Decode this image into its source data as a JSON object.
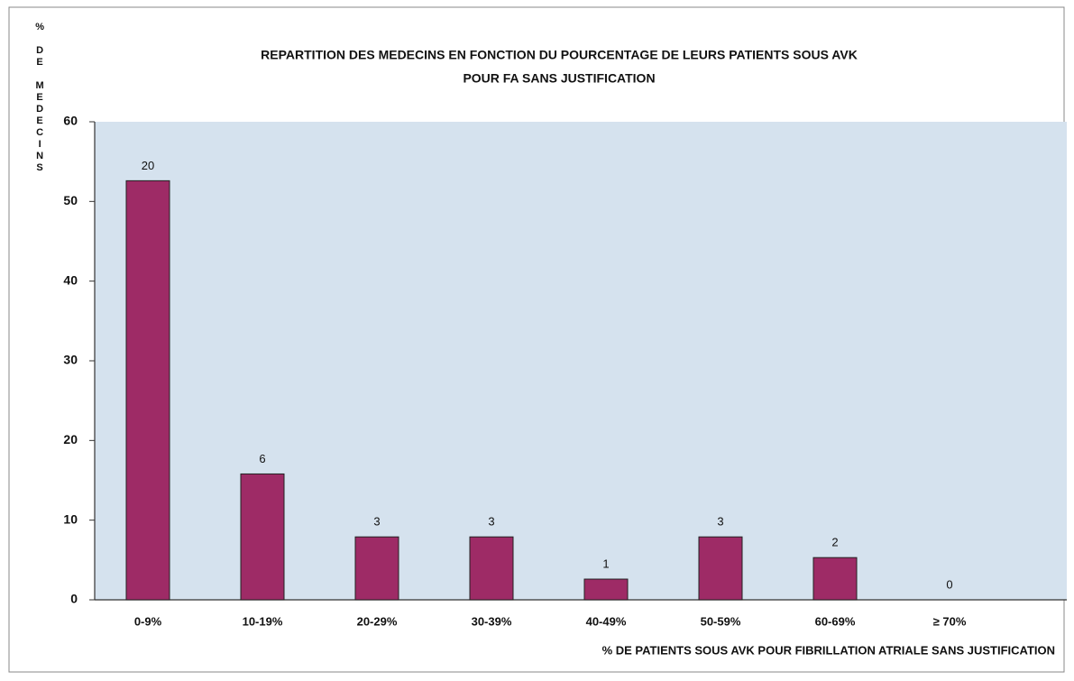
{
  "chart_data": {
    "type": "bar",
    "title": [
      "REPARTITION DES MEDECINS EN FONCTION DU POURCENTAGE DE LEURS PATIENTS SOUS AVK",
      "POUR FA SANS JUSTIFICATION"
    ],
    "y_label": "% DE MEDECINS",
    "x_label": "% DE PATIENTS SOUS AVK POUR FIBRILLATION ATRIALE SANS JUSTIFICATION",
    "categories": [
      "0-9%",
      "10-19%",
      "20-29%",
      "30-39%",
      "40-49%",
      "50-59%",
      "60-69%",
      "≥ 70%"
    ],
    "values": [
      52.6,
      15.8,
      7.9,
      7.9,
      2.6,
      7.9,
      5.3,
      0
    ],
    "counts": [
      "20",
      "6",
      "3",
      "3",
      "1",
      "3",
      "2",
      "0"
    ],
    "color": "#9e2b66",
    "ylim": [
      0,
      60
    ],
    "yticks": [
      0,
      10,
      20,
      30,
      40,
      50,
      60
    ],
    "grid": false
  }
}
